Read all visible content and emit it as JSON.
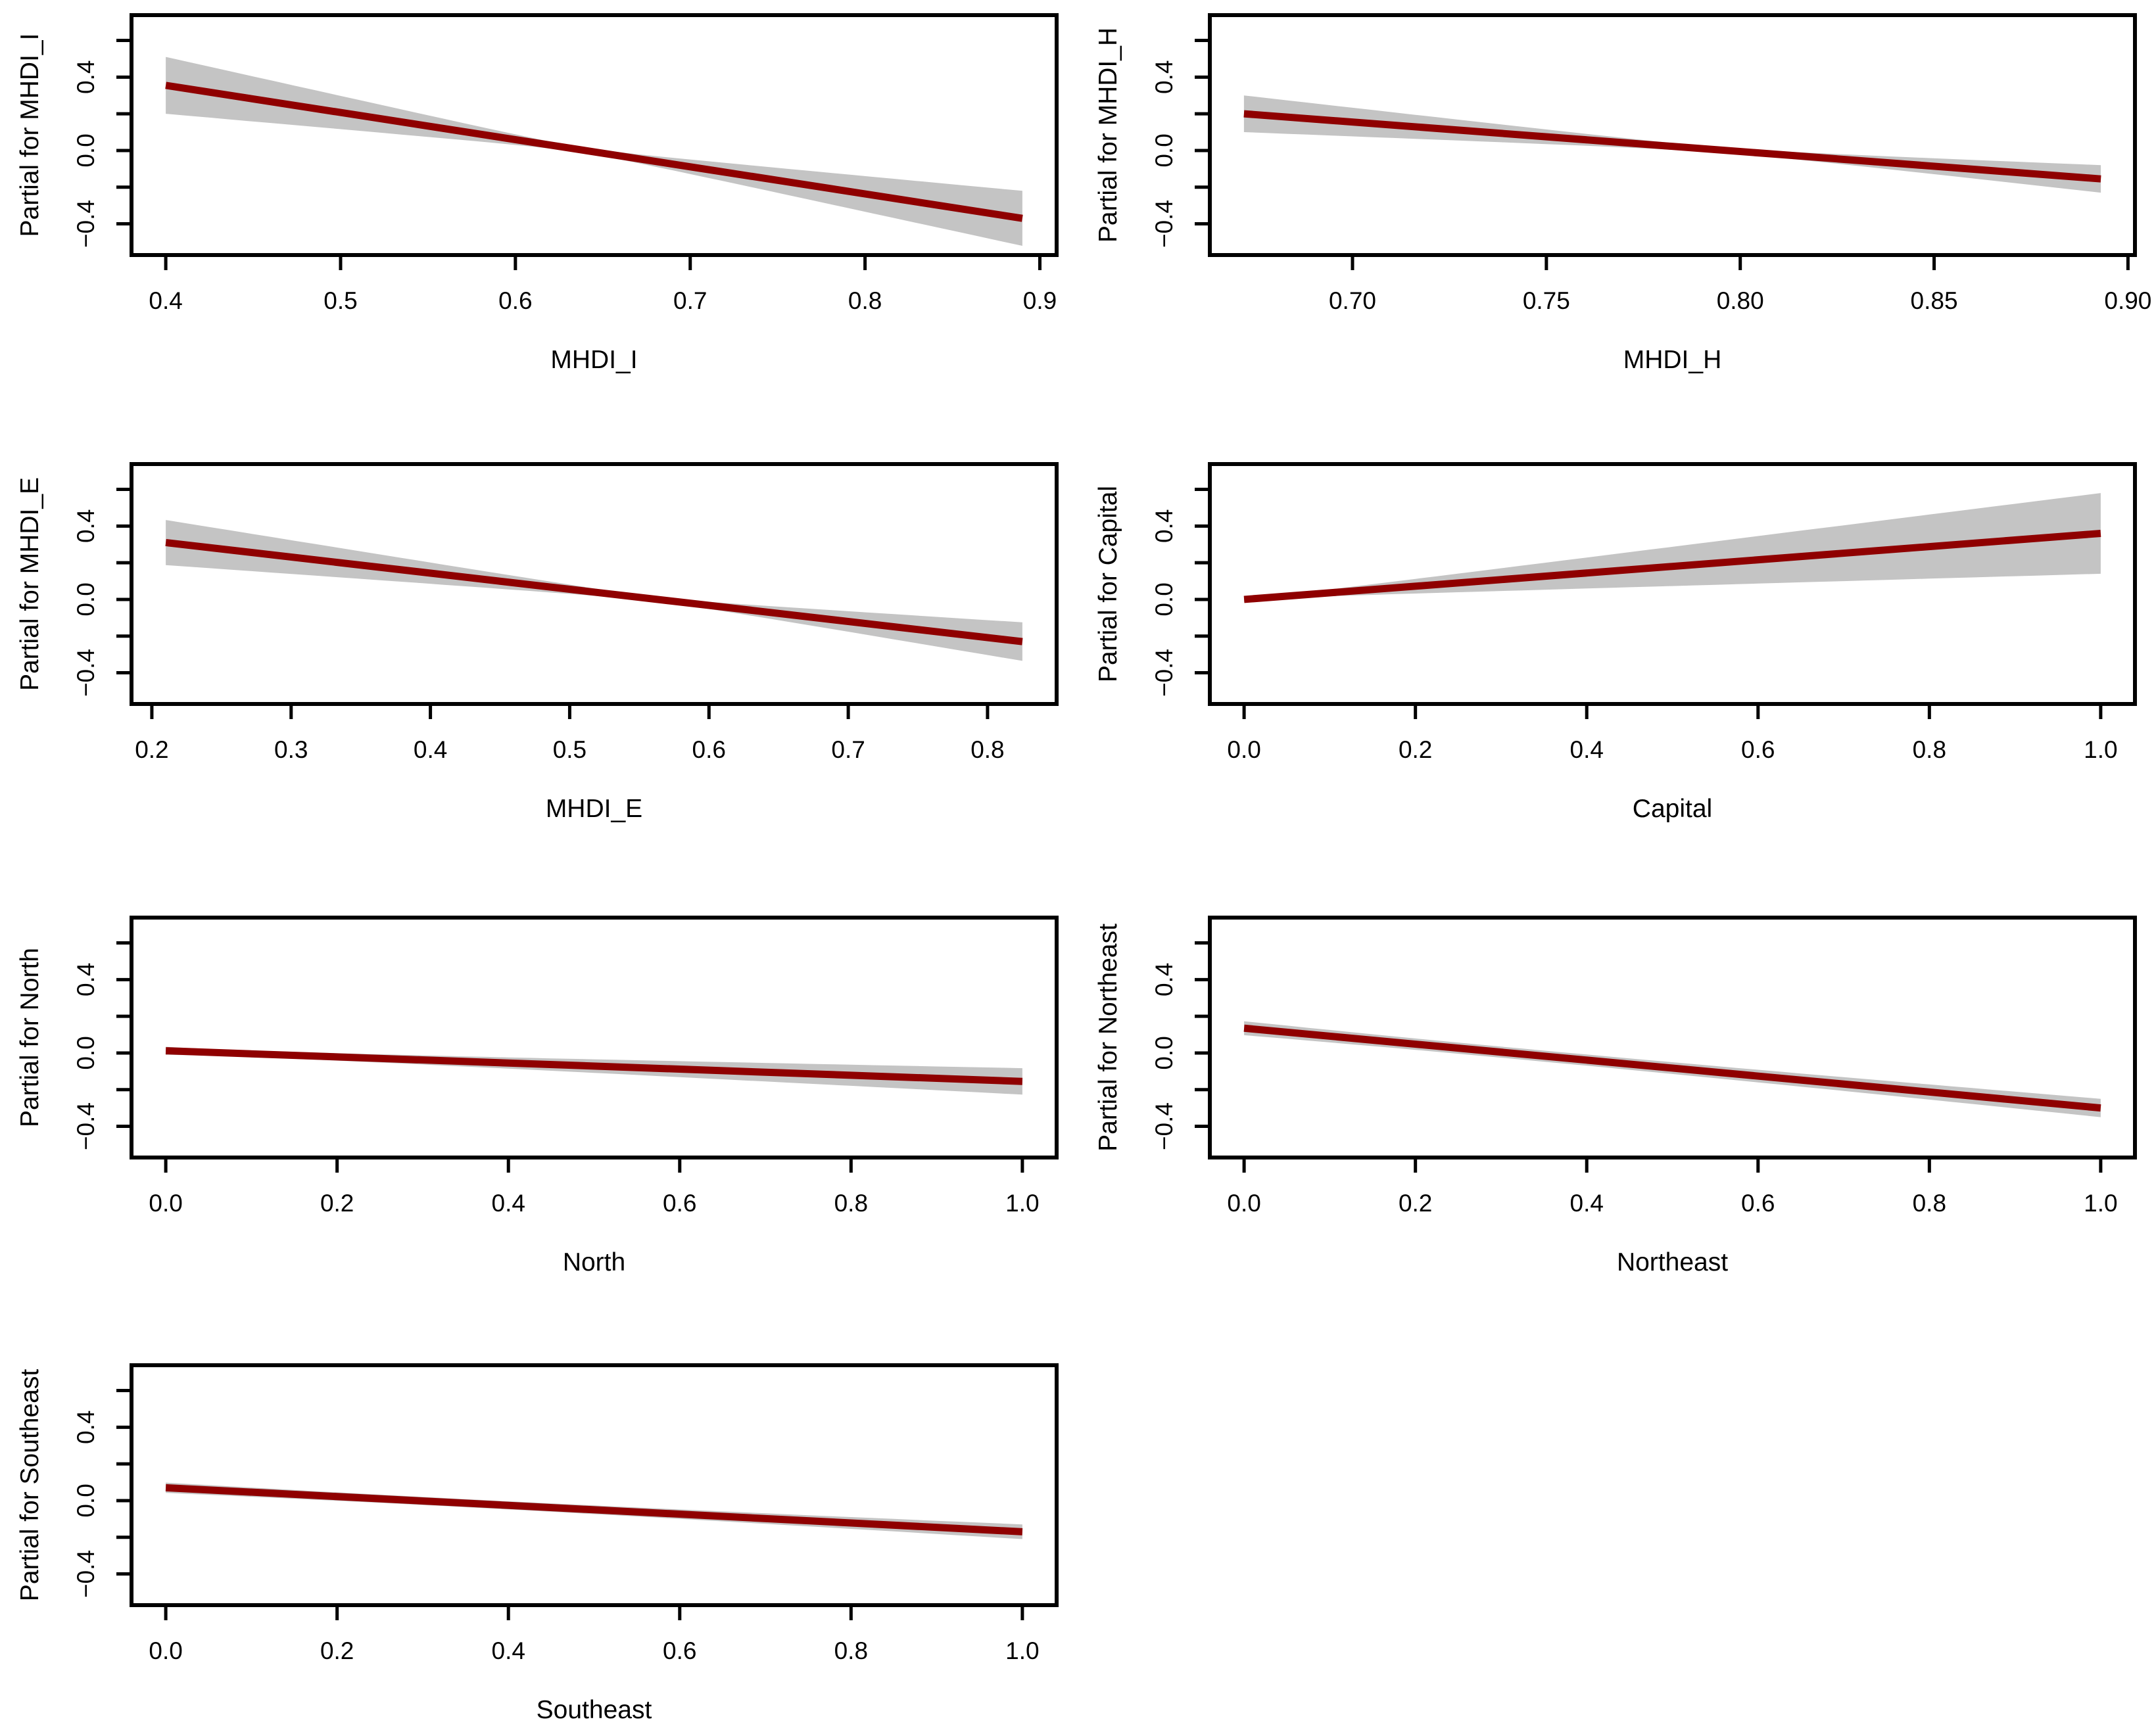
{
  "figure": {
    "background": "#FFFFFF",
    "description": "Grid of seven partial regression (termplot) panels with confidence bands"
  },
  "colors": {
    "line": "#8F0000",
    "band": "#C4C4C4",
    "axis": "#000000",
    "text": "#000000"
  },
  "y_axis": {
    "domain": [
      -0.57,
      0.738
    ],
    "ticks": [
      {
        "v": -0.4,
        "label": "−0.4"
      },
      {
        "v": -0.2,
        "label": ""
      },
      {
        "v": 0.0,
        "label": "0.0"
      },
      {
        "v": 0.2,
        "label": ""
      },
      {
        "v": 0.4,
        "label": "0.4"
      },
      {
        "v": 0.6,
        "label": ""
      }
    ]
  },
  "chart_data": [
    {
      "type": "line",
      "x_label": "MHDI_I",
      "y_label": "Partial for MHDI_I",
      "x_domain": [
        0.3804,
        0.9096
      ],
      "x_ticks": [
        {
          "v": 0.4,
          "label": "0.4"
        },
        {
          "v": 0.5,
          "label": "0.5"
        },
        {
          "v": 0.6,
          "label": "0.6"
        },
        {
          "v": 0.7,
          "label": "0.7"
        },
        {
          "v": 0.8,
          "label": "0.8"
        },
        {
          "v": 0.9,
          "label": "0.9"
        }
      ],
      "line": {
        "x": [
          0.4,
          0.89
        ],
        "y": [
          0.355,
          -0.37
        ]
      },
      "band": {
        "pinch_x": 0.638,
        "hw_min": 0.015,
        "hw_left": 0.155,
        "hw_right": 0.15
      }
    },
    {
      "type": "line",
      "x_label": "MHDI_H",
      "y_label": "Partial for MHDI_H",
      "x_domain": [
        0.6632,
        0.9018
      ],
      "x_ticks": [
        {
          "v": 0.7,
          "label": "0.70"
        },
        {
          "v": 0.75,
          "label": "0.75"
        },
        {
          "v": 0.8,
          "label": "0.80"
        },
        {
          "v": 0.85,
          "label": "0.85"
        },
        {
          "v": 0.9,
          "label": "0.90"
        }
      ],
      "line": {
        "x": [
          0.672,
          0.893
        ],
        "y": [
          0.2,
          -0.155
        ]
      },
      "band": {
        "pinch_x": 0.7965,
        "hw_min": 0.015,
        "hw_left": 0.1,
        "hw_right": 0.075
      }
    },
    {
      "type": "line",
      "x_label": "MHDI_E",
      "y_label": "Partial for MHDI_E",
      "x_domain": [
        0.1854,
        0.8496
      ],
      "x_ticks": [
        {
          "v": 0.2,
          "label": "0.2"
        },
        {
          "v": 0.3,
          "label": "0.3"
        },
        {
          "v": 0.4,
          "label": "0.4"
        },
        {
          "v": 0.5,
          "label": "0.5"
        },
        {
          "v": 0.6,
          "label": "0.6"
        },
        {
          "v": 0.7,
          "label": "0.7"
        },
        {
          "v": 0.8,
          "label": "0.8"
        }
      ],
      "line": {
        "x": [
          0.21,
          0.825
        ],
        "y": [
          0.31,
          -0.23
        ]
      },
      "band": {
        "pinch_x": 0.563,
        "hw_min": 0.013,
        "hw_left": 0.123,
        "hw_right": 0.105
      }
    },
    {
      "type": "line",
      "x_label": "Capital",
      "y_label": "Partial for Capital",
      "x_domain": [
        -0.04,
        1.04
      ],
      "x_ticks": [
        {
          "v": 0.0,
          "label": "0.0"
        },
        {
          "v": 0.2,
          "label": "0.2"
        },
        {
          "v": 0.4,
          "label": "0.4"
        },
        {
          "v": 0.6,
          "label": "0.6"
        },
        {
          "v": 0.8,
          "label": "0.8"
        },
        {
          "v": 1.0,
          "label": "1.0"
        }
      ],
      "line": {
        "x": [
          0.0,
          1.0
        ],
        "y": [
          0.0,
          0.36
        ]
      },
      "band": {
        "pinch_x": 0.03,
        "hw_min": 0.01,
        "hw_left": 0.013,
        "hw_right": 0.22
      }
    },
    {
      "type": "line",
      "x_label": "North",
      "y_label": "Partial for North",
      "x_domain": [
        -0.04,
        1.04
      ],
      "x_ticks": [
        {
          "v": 0.0,
          "label": "0.0"
        },
        {
          "v": 0.2,
          "label": "0.2"
        },
        {
          "v": 0.4,
          "label": "0.4"
        },
        {
          "v": 0.6,
          "label": "0.6"
        },
        {
          "v": 0.8,
          "label": "0.8"
        },
        {
          "v": 1.0,
          "label": "1.0"
        }
      ],
      "line": {
        "x": [
          0.0,
          1.0
        ],
        "y": [
          0.012,
          -0.155
        ]
      },
      "band": {
        "pinch_x": 0.07,
        "hw_min": 0.018,
        "hw_left": 0.022,
        "hw_right": 0.072
      }
    },
    {
      "type": "line",
      "x_label": "Northeast",
      "y_label": "Partial for Northeast",
      "x_domain": [
        -0.04,
        1.04
      ],
      "x_ticks": [
        {
          "v": 0.0,
          "label": "0.0"
        },
        {
          "v": 0.2,
          "label": "0.2"
        },
        {
          "v": 0.4,
          "label": "0.4"
        },
        {
          "v": 0.6,
          "label": "0.6"
        },
        {
          "v": 0.8,
          "label": "0.8"
        },
        {
          "v": 1.0,
          "label": "1.0"
        }
      ],
      "line": {
        "x": [
          0.0,
          1.0
        ],
        "y": [
          0.135,
          -0.3
        ]
      },
      "band": {
        "pinch_x": 0.31,
        "hw_min": 0.03,
        "hw_left": 0.038,
        "hw_right": 0.05
      }
    },
    {
      "type": "line",
      "x_label": "Southeast",
      "y_label": "Partial for Southeast",
      "x_domain": [
        -0.04,
        1.04
      ],
      "x_ticks": [
        {
          "v": 0.0,
          "label": "0.0"
        },
        {
          "v": 0.2,
          "label": "0.2"
        },
        {
          "v": 0.4,
          "label": "0.4"
        },
        {
          "v": 0.6,
          "label": "0.6"
        },
        {
          "v": 0.8,
          "label": "0.8"
        },
        {
          "v": 1.0,
          "label": "1.0"
        }
      ],
      "line": {
        "x": [
          0.0,
          1.0
        ],
        "y": [
          0.07,
          -0.17
        ]
      },
      "band": {
        "pinch_x": 0.33,
        "hw_min": 0.022,
        "hw_left": 0.028,
        "hw_right": 0.04
      }
    }
  ]
}
